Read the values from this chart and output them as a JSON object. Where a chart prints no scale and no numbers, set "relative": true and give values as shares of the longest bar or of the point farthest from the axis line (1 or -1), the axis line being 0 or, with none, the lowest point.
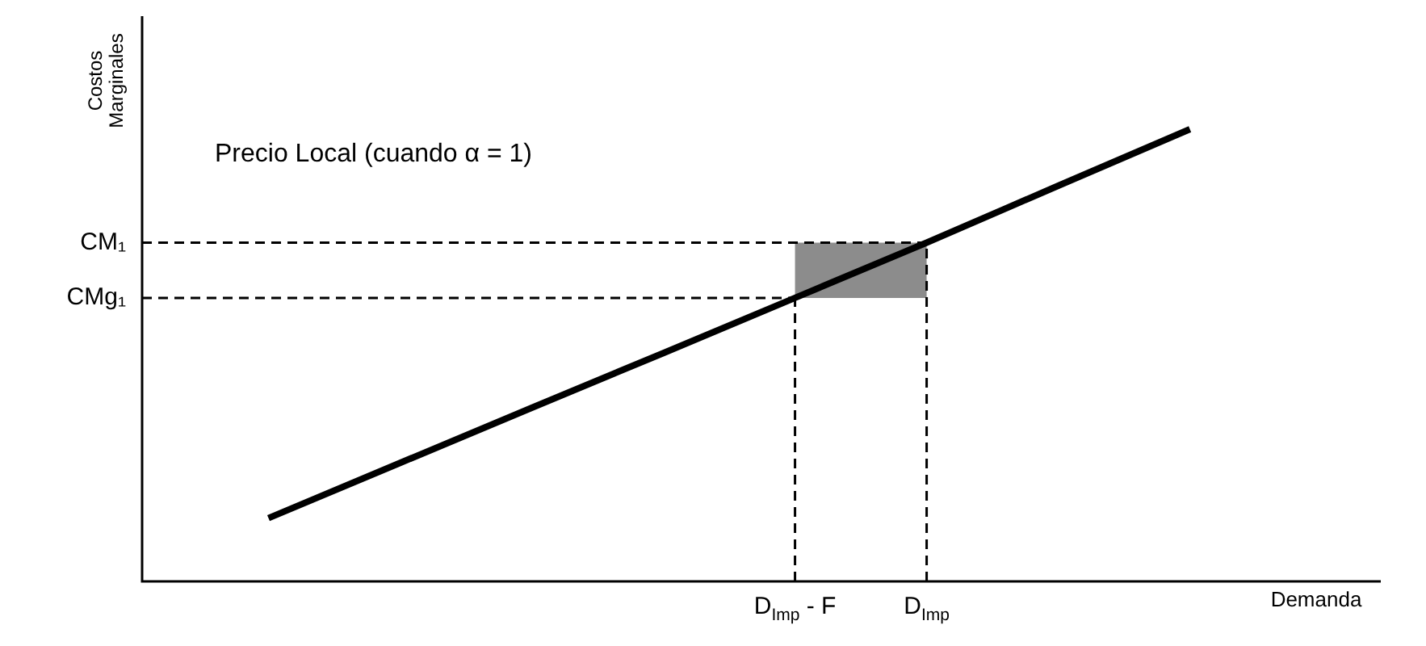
{
  "chart_data": {
    "type": "line",
    "relative": true,
    "xlabel": "Demanda",
    "ylabel": "Costos Marginales",
    "annotations": [
      "Precio Local (cuando α = 1)"
    ],
    "categories": [
      null,
      null,
      null,
      null,
      "D$_{Imp}$ - F",
      "D$_{Imp}$",
      null,
      null
    ],
    "series": [
      {
        "color": "#000000",
        "values": [
          0.14,
          0.262,
          0.384,
          0.505,
          0.627,
          0.749,
          0.875,
          1
        ]
      }
    ],
    "legend": false,
    "marker": "none",
    "line_style": "solid",
    "ref_lines": [
      {
        "axis": "y",
        "value": 0.749,
        "label": "CM₁",
        "line_style": "dashed"
      },
      {
        "axis": "y",
        "value": 0.627,
        "label": "CMg₁",
        "line_style": "dashed"
      },
      {
        "axis": "x",
        "value": "D$_{Imp}$ - F",
        "line_style": "dashed"
      },
      {
        "axis": "x",
        "value": "D$_{Imp}$",
        "line_style": "dashed"
      }
    ],
    "bands": [
      {
        "axis": "x",
        "from": "D$_{Imp}$ - F",
        "to": "D$_{Imp}$",
        "color": "#8c8c8c"
      }
    ]
  }
}
